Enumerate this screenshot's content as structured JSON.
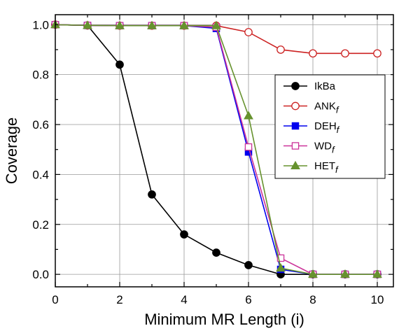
{
  "chart_data": {
    "type": "line",
    "title": "",
    "xlabel": "Minimum MR Length (i)",
    "ylabel": "Coverage",
    "xlim": [
      0,
      10.5
    ],
    "ylim": [
      -0.05,
      1.04
    ],
    "xticks": [
      0,
      2,
      4,
      6,
      8,
      10
    ],
    "yticks": [
      0.0,
      0.2,
      0.4,
      0.6,
      0.8,
      1.0
    ],
    "xtick_labels": [
      "0",
      "2",
      "4",
      "6",
      "8",
      "10"
    ],
    "ytick_labels": [
      "0.0",
      "0.2",
      "0.4",
      "0.6",
      "0.8",
      "1.0"
    ],
    "grid": true,
    "legend_position": "center-right",
    "series": [
      {
        "name": "IkBa",
        "name_sub": "",
        "color": "#000000",
        "marker": "filled-circle",
        "x": [
          0,
          1,
          2,
          3,
          4,
          5,
          6,
          7,
          8,
          9,
          10
        ],
        "y": [
          1.0,
          0.997,
          0.84,
          0.32,
          0.16,
          0.087,
          0.037,
          0.0,
          0.0,
          0.0,
          0.0
        ]
      },
      {
        "name": "ANK",
        "name_sub": "f",
        "color": "#cc2222",
        "marker": "open-circle",
        "x": [
          0,
          1,
          2,
          3,
          4,
          5,
          6,
          7,
          8,
          9,
          10
        ],
        "y": [
          1.0,
          0.997,
          0.996,
          0.996,
          0.996,
          0.996,
          0.97,
          0.9,
          0.885,
          0.885,
          0.885
        ]
      },
      {
        "name": "DEH",
        "name_sub": "f",
        "color": "#0000ee",
        "marker": "filled-square",
        "x": [
          0,
          1,
          2,
          3,
          4,
          5,
          6,
          7,
          8,
          9,
          10
        ],
        "y": [
          1.0,
          0.997,
          0.996,
          0.996,
          0.996,
          0.985,
          0.49,
          0.02,
          0.0,
          0.0,
          0.0
        ]
      },
      {
        "name": "WD",
        "name_sub": "f",
        "color": "#cc3399",
        "marker": "open-square",
        "x": [
          0,
          1,
          2,
          3,
          4,
          5,
          6,
          7,
          8,
          9,
          10
        ],
        "y": [
          1.0,
          0.997,
          0.996,
          0.996,
          0.996,
          0.99,
          0.51,
          0.065,
          0.0,
          0.0,
          0.0
        ]
      },
      {
        "name": "HET",
        "name_sub": "f",
        "color": "#66922e",
        "marker": "filled-triangle",
        "x": [
          0,
          1,
          2,
          3,
          4,
          5,
          6,
          7,
          8,
          9,
          10
        ],
        "y": [
          1.0,
          0.997,
          0.996,
          0.996,
          0.996,
          0.996,
          0.635,
          0.025,
          0.0,
          0.0,
          0.0
        ]
      }
    ]
  }
}
